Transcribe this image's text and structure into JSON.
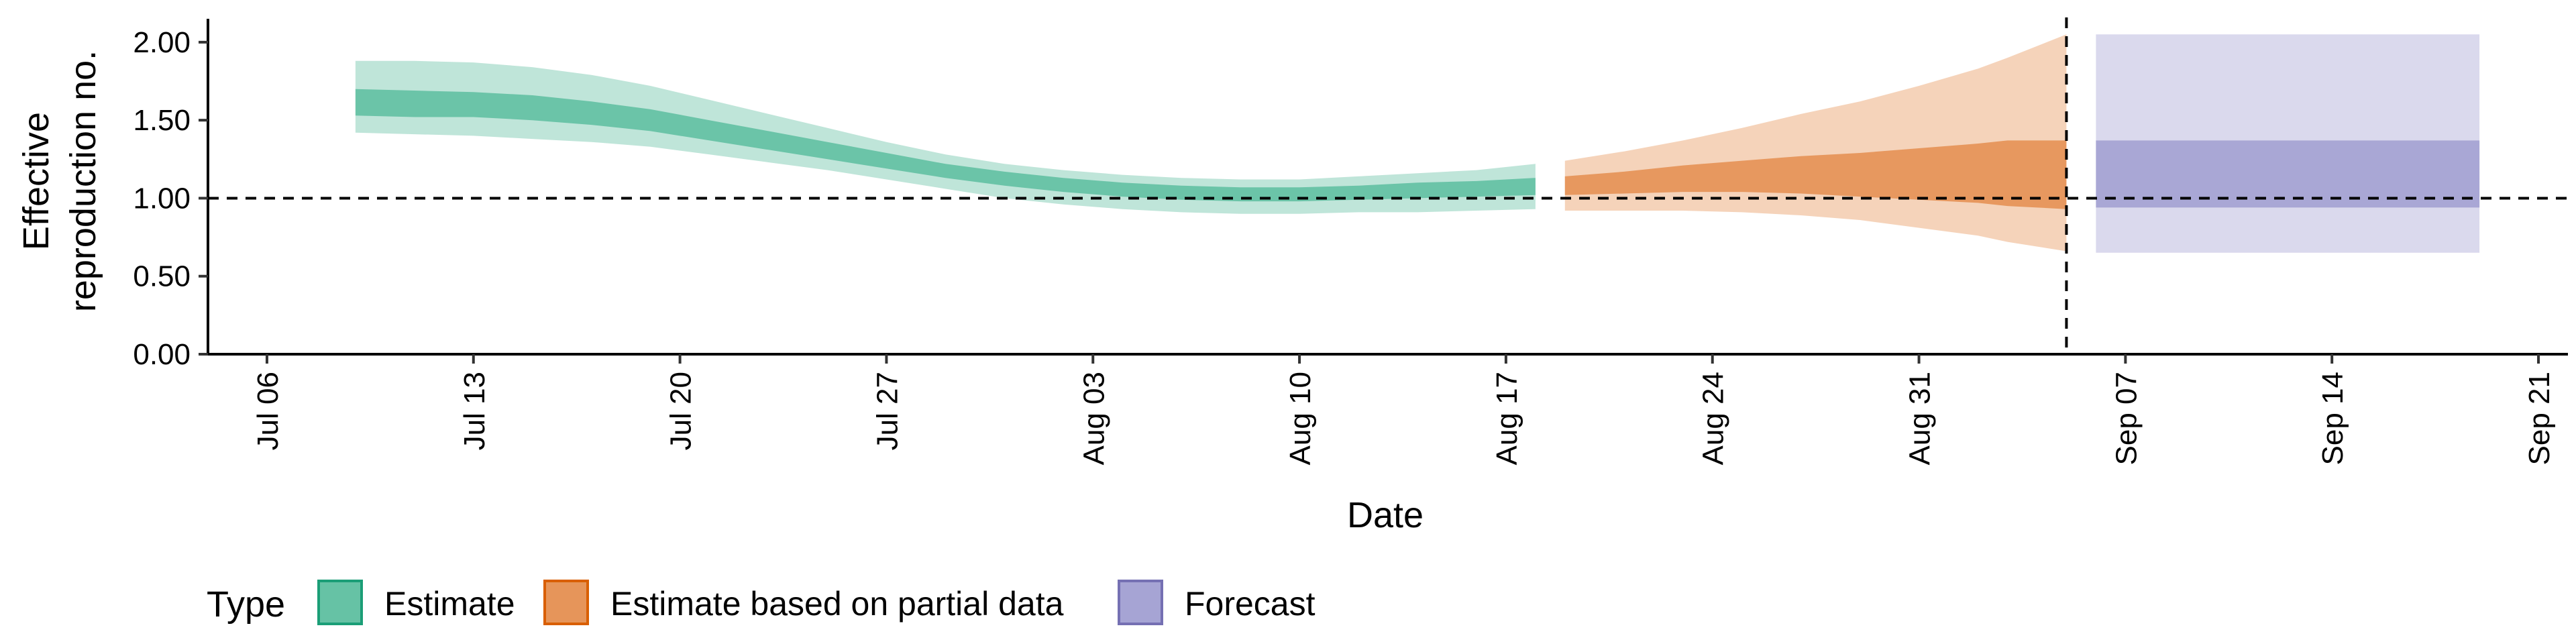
{
  "chart_data": {
    "type": "area",
    "xlabel": "Date",
    "ylabel_lines": [
      "Effective",
      "reproduction no."
    ],
    "ylim": [
      0,
      2.15
    ],
    "xlim": [
      "2020-07-04",
      "2020-09-22"
    ],
    "y_ticks": [
      {
        "value": 0.0,
        "label": "0.00"
      },
      {
        "value": 0.5,
        "label": "0.50"
      },
      {
        "value": 1.0,
        "label": "1.00"
      },
      {
        "value": 1.5,
        "label": "1.50"
      },
      {
        "value": 2.0,
        "label": "2.00"
      }
    ],
    "x_ticks": [
      {
        "date": "2020-07-06",
        "label": "Jul 06"
      },
      {
        "date": "2020-07-13",
        "label": "Jul 13"
      },
      {
        "date": "2020-07-20",
        "label": "Jul 20"
      },
      {
        "date": "2020-07-27",
        "label": "Jul 27"
      },
      {
        "date": "2020-08-03",
        "label": "Aug 03"
      },
      {
        "date": "2020-08-10",
        "label": "Aug 10"
      },
      {
        "date": "2020-08-17",
        "label": "Aug 17"
      },
      {
        "date": "2020-08-24",
        "label": "Aug 24"
      },
      {
        "date": "2020-08-31",
        "label": "Aug 31"
      },
      {
        "date": "2020-09-07",
        "label": "Sep 07"
      },
      {
        "date": "2020-09-14",
        "label": "Sep 14"
      },
      {
        "date": "2020-09-21",
        "label": "Sep 21"
      }
    ],
    "reference_hline": 1.0,
    "reference_vline": "2020-09-05",
    "grid": false,
    "legend_position": "bottom",
    "legend_title": "Type",
    "series": [
      {
        "name": "Estimate",
        "fill": "#66c2a5",
        "border": "#1b9e77",
        "points": [
          {
            "x": "2020-07-09",
            "lo90": 1.42,
            "hi90": 1.88,
            "lo50": 1.53,
            "hi50": 1.7
          },
          {
            "x": "2020-07-11",
            "lo90": 1.41,
            "hi90": 1.88,
            "lo50": 1.52,
            "hi50": 1.69
          },
          {
            "x": "2020-07-13",
            "lo90": 1.4,
            "hi90": 1.87,
            "lo50": 1.52,
            "hi50": 1.68
          },
          {
            "x": "2020-07-15",
            "lo90": 1.38,
            "hi90": 1.84,
            "lo50": 1.5,
            "hi50": 1.66
          },
          {
            "x": "2020-07-17",
            "lo90": 1.36,
            "hi90": 1.79,
            "lo50": 1.47,
            "hi50": 1.62
          },
          {
            "x": "2020-07-19",
            "lo90": 1.33,
            "hi90": 1.72,
            "lo50": 1.43,
            "hi50": 1.57
          },
          {
            "x": "2020-07-21",
            "lo90": 1.28,
            "hi90": 1.63,
            "lo50": 1.37,
            "hi50": 1.5
          },
          {
            "x": "2020-07-23",
            "lo90": 1.23,
            "hi90": 1.54,
            "lo50": 1.31,
            "hi50": 1.43
          },
          {
            "x": "2020-07-25",
            "lo90": 1.18,
            "hi90": 1.45,
            "lo50": 1.25,
            "hi50": 1.36
          },
          {
            "x": "2020-07-27",
            "lo90": 1.12,
            "hi90": 1.36,
            "lo50": 1.19,
            "hi50": 1.29
          },
          {
            "x": "2020-07-29",
            "lo90": 1.06,
            "hi90": 1.28,
            "lo50": 1.13,
            "hi50": 1.22
          },
          {
            "x": "2020-07-31",
            "lo90": 1.0,
            "hi90": 1.22,
            "lo50": 1.08,
            "hi50": 1.17
          },
          {
            "x": "2020-08-02",
            "lo90": 0.96,
            "hi90": 1.18,
            "lo50": 1.04,
            "hi50": 1.13
          },
          {
            "x": "2020-08-04",
            "lo90": 0.93,
            "hi90": 1.15,
            "lo50": 1.01,
            "hi50": 1.1
          },
          {
            "x": "2020-08-06",
            "lo90": 0.91,
            "hi90": 1.13,
            "lo50": 0.99,
            "hi50": 1.08
          },
          {
            "x": "2020-08-08",
            "lo90": 0.9,
            "hi90": 1.12,
            "lo50": 0.98,
            "hi50": 1.07
          },
          {
            "x": "2020-08-10",
            "lo90": 0.9,
            "hi90": 1.12,
            "lo50": 0.98,
            "hi50": 1.07
          },
          {
            "x": "2020-08-12",
            "lo90": 0.91,
            "hi90": 1.14,
            "lo50": 0.99,
            "hi50": 1.08
          },
          {
            "x": "2020-08-14",
            "lo90": 0.91,
            "hi90": 1.16,
            "lo50": 1.0,
            "hi50": 1.1
          },
          {
            "x": "2020-08-16",
            "lo90": 0.92,
            "hi90": 1.18,
            "lo50": 1.01,
            "hi50": 1.11
          },
          {
            "x": "2020-08-18",
            "lo90": 0.93,
            "hi90": 1.22,
            "lo50": 1.02,
            "hi50": 1.13
          }
        ]
      },
      {
        "name": "Estimate based on partial data",
        "fill": "#e6955a",
        "border": "#d95f02",
        "points": [
          {
            "x": "2020-08-19",
            "lo90": 0.92,
            "hi90": 1.24,
            "lo50": 1.02,
            "hi50": 1.14
          },
          {
            "x": "2020-08-21",
            "lo90": 0.92,
            "hi90": 1.3,
            "lo50": 1.03,
            "hi50": 1.17
          },
          {
            "x": "2020-08-23",
            "lo90": 0.92,
            "hi90": 1.37,
            "lo50": 1.04,
            "hi50": 1.21
          },
          {
            "x": "2020-08-25",
            "lo90": 0.91,
            "hi90": 1.45,
            "lo50": 1.04,
            "hi50": 1.24
          },
          {
            "x": "2020-08-27",
            "lo90": 0.89,
            "hi90": 1.54,
            "lo50": 1.03,
            "hi50": 1.27
          },
          {
            "x": "2020-08-29",
            "lo90": 0.86,
            "hi90": 1.62,
            "lo50": 1.01,
            "hi50": 1.29
          },
          {
            "x": "2020-08-31",
            "lo90": 0.81,
            "hi90": 1.72,
            "lo50": 0.99,
            "hi50": 1.32
          },
          {
            "x": "2020-09-02",
            "lo90": 0.76,
            "hi90": 1.83,
            "lo50": 0.97,
            "hi50": 1.35
          },
          {
            "x": "2020-09-03",
            "lo90": 0.72,
            "hi90": 1.9,
            "lo50": 0.95,
            "hi50": 1.37
          },
          {
            "x": "2020-09-05",
            "lo90": 0.66,
            "hi90": 2.05,
            "lo50": 0.93,
            "hi50": 1.37
          }
        ]
      },
      {
        "name": "Forecast",
        "fill": "#a6a4d4",
        "border": "#7570b3",
        "points": [
          {
            "x": "2020-09-06",
            "lo90": 0.65,
            "hi90": 2.05,
            "lo50": 0.94,
            "hi50": 1.37
          },
          {
            "x": "2020-09-19",
            "lo90": 0.65,
            "hi90": 2.05,
            "lo50": 0.94,
            "hi50": 1.37
          }
        ]
      }
    ]
  }
}
